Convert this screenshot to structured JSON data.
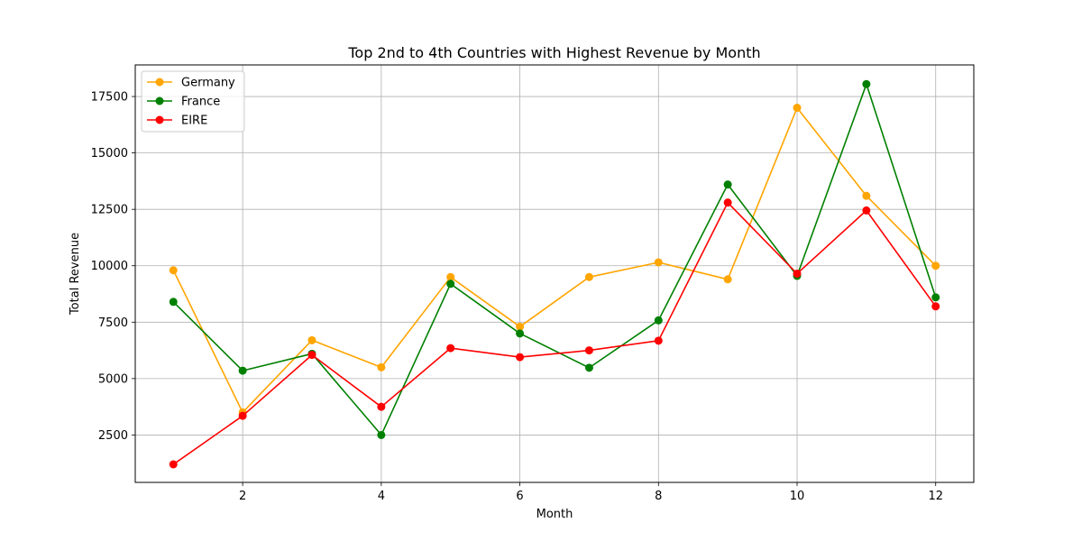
{
  "chart_data": {
    "type": "line",
    "title": "Top 2nd to 4th Countries with Highest Revenue by Month",
    "xlabel": "Month",
    "ylabel": "Total Revenue",
    "x": [
      1,
      2,
      3,
      4,
      5,
      6,
      7,
      8,
      9,
      10,
      11,
      12
    ],
    "xlim": [
      0.45,
      12.55
    ],
    "ylim": [
      400,
      18900
    ],
    "xticks": [
      2,
      4,
      6,
      8,
      10,
      12
    ],
    "yticks": [
      2500,
      5000,
      7500,
      10000,
      12500,
      15000,
      17500
    ],
    "grid": true,
    "legend_position": "upper-left",
    "series": [
      {
        "name": "Germany",
        "color": "#ffa500",
        "values": [
          9800,
          3500,
          6700,
          5500,
          9500,
          7300,
          9500,
          10150,
          9400,
          17000,
          13100,
          10000
        ]
      },
      {
        "name": "France",
        "color": "#008000",
        "values": [
          8400,
          5350,
          6100,
          2500,
          9200,
          7000,
          5480,
          7580,
          13600,
          9550,
          18050,
          8600
        ]
      },
      {
        "name": "EIRE",
        "color": "#ff0000",
        "values": [
          1200,
          3350,
          6050,
          3750,
          6350,
          5950,
          6250,
          6680,
          12800,
          9650,
          12450,
          8200
        ]
      }
    ]
  }
}
